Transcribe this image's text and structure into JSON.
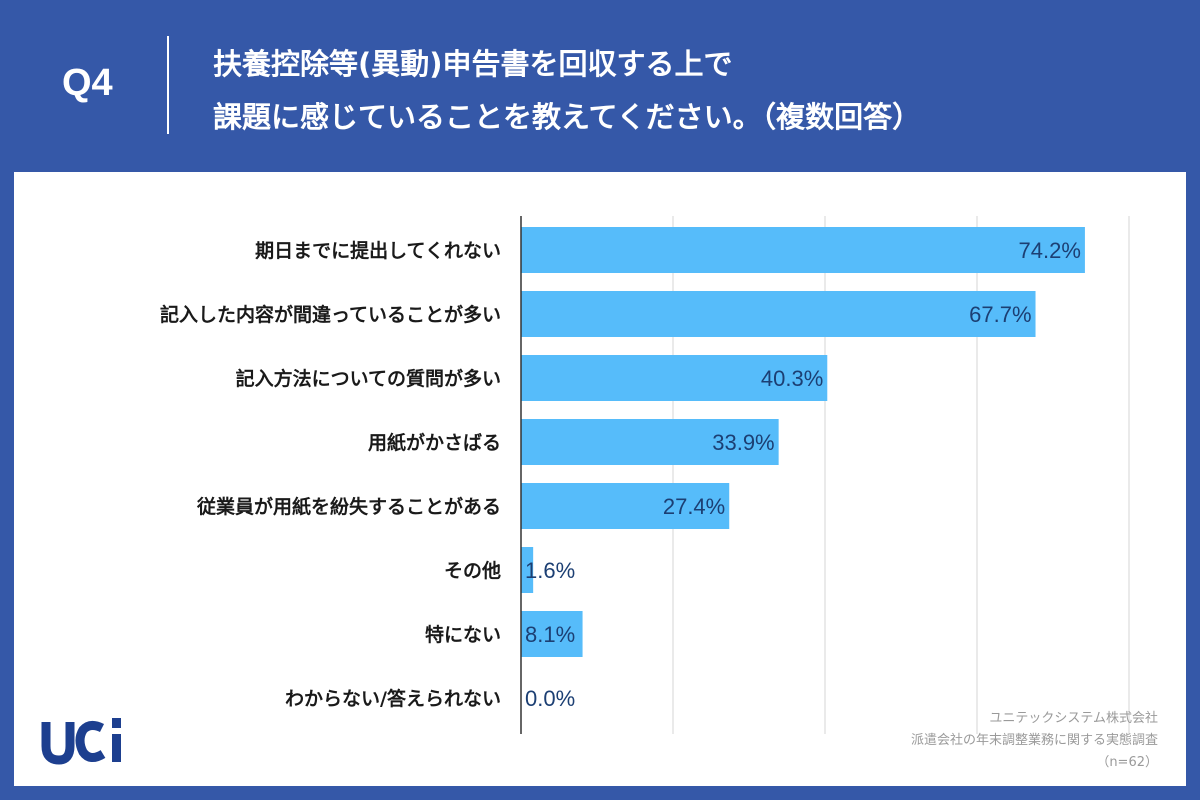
{
  "header": {
    "question_number": "Q4",
    "title_line1": "扶養控除等(異動)申告書を回収する上で",
    "title_line2": "課題に感じていることを教えてください。（複数回答）"
  },
  "chart_data": {
    "type": "bar",
    "orientation": "horizontal",
    "categories": [
      "期日までに提出してくれない",
      "記入した内容が間違っていることが多い",
      "記入方法についての質問が多い",
      "用紙がかさばる",
      "従業員が用紙を紛失することがある",
      "その他",
      "特にない",
      "わからない/答えられない"
    ],
    "values": [
      74.2,
      67.7,
      40.3,
      33.9,
      27.4,
      1.6,
      8.1,
      0.0
    ],
    "value_labels": [
      "74.2%",
      "67.7%",
      "40.3%",
      "33.9%",
      "27.4%",
      "1.6%",
      "8.1%",
      "0.0%"
    ],
    "xlim": [
      0,
      80
    ],
    "gridlines": [
      20,
      40,
      60,
      80
    ],
    "grid": true,
    "bar_color": "#56bcfa",
    "value_label_color": "#1c3f73"
  },
  "source": {
    "company": "ユニテックシステム株式会社",
    "survey": "派遣会社の年末調整業務に関する実態調査",
    "sample": "（n=62）"
  },
  "logo": {
    "text": "uci",
    "color": "#1d3f8f"
  },
  "colors": {
    "background": "#3558a8",
    "panel": "#ffffff",
    "header_text": "#ffffff"
  }
}
